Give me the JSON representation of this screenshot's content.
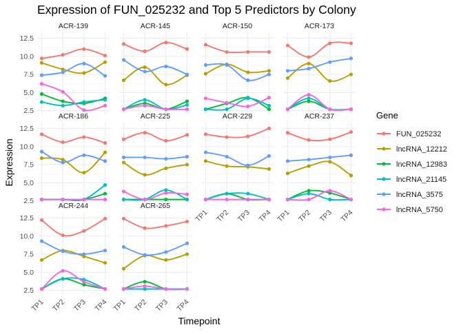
{
  "chart_data": {
    "type": "line",
    "title": "Expression of FUN_025232 and Top 5 Predictors by Colony",
    "xlabel": "Timepoint",
    "ylabel": "Expression",
    "x": [
      "TP1",
      "TP2",
      "TP3",
      "TP4"
    ],
    "y_ticks": [
      2.5,
      5.0,
      7.5,
      10.0,
      12.5
    ],
    "y_tick_labels": [
      "2.5",
      "5.0",
      "7.5",
      "10.0",
      "12.5"
    ],
    "ylim": [
      2.0,
      13.3
    ],
    "grid": true,
    "facet_layout": {
      "rows": 3,
      "cols": 4
    },
    "legend": {
      "title": "Gene",
      "position": "right"
    },
    "series_meta": [
      {
        "name": "FUN_025232",
        "color": "#F8766D"
      },
      {
        "name": "lncRNA_12212",
        "color": "#B79F00"
      },
      {
        "name": "lncRNA_12983",
        "color": "#00BA38"
      },
      {
        "name": "lncRNA_21145",
        "color": "#00BFC4"
      },
      {
        "name": "lncRNA_3575",
        "color": "#619CFF"
      },
      {
        "name": "lncRNA_5750",
        "color": "#F564E3"
      }
    ],
    "panels": [
      {
        "label": "ACR-139",
        "series": [
          {
            "name": "FUN_025232",
            "values": [
              9.7,
              10.2,
              11.0,
              10.1
            ]
          },
          {
            "name": "lncRNA_12212",
            "values": [
              9.1,
              8.2,
              7.7,
              9.2
            ]
          },
          {
            "name": "lncRNA_12983",
            "values": [
              4.8,
              3.8,
              3.5,
              4.2
            ]
          },
          {
            "name": "lncRNA_21145",
            "values": [
              3.7,
              3.2,
              3.7,
              4.0
            ]
          },
          {
            "name": "lncRNA_3575",
            "values": [
              7.4,
              7.8,
              9.0,
              7.3
            ]
          },
          {
            "name": "lncRNA_5750",
            "values": [
              6.2,
              5.1,
              2.6,
              3.2
            ]
          }
        ]
      },
      {
        "label": "ACR-145",
        "series": [
          {
            "name": "FUN_025232",
            "values": [
              11.7,
              10.7,
              11.9,
              11.0
            ]
          },
          {
            "name": "lncRNA_12212",
            "values": [
              6.7,
              8.5,
              6.1,
              7.4
            ]
          },
          {
            "name": "lncRNA_12983",
            "values": [
              2.7,
              3.5,
              2.7,
              3.8
            ]
          },
          {
            "name": "lncRNA_21145",
            "values": [
              2.7,
              4.0,
              2.7,
              3.3
            ]
          },
          {
            "name": "lncRNA_3575",
            "values": [
              9.5,
              7.9,
              8.6,
              7.5
            ]
          },
          {
            "name": "lncRNA_5750",
            "values": [
              2.7,
              3.2,
              2.7,
              2.7
            ]
          }
        ]
      },
      {
        "label": "ACR-150",
        "series": [
          {
            "name": "FUN_025232",
            "values": [
              11.6,
              10.6,
              10.6,
              10.6
            ]
          },
          {
            "name": "lncRNA_12212",
            "values": [
              7.6,
              8.9,
              7.8,
              8.0
            ]
          },
          {
            "name": "lncRNA_12983",
            "values": [
              2.7,
              3.5,
              4.3,
              2.7
            ]
          },
          {
            "name": "lncRNA_21145",
            "values": [
              2.7,
              2.7,
              4.2,
              3.2
            ]
          },
          {
            "name": "lncRNA_3575",
            "values": [
              8.8,
              8.8,
              6.7,
              7.5
            ]
          },
          {
            "name": "lncRNA_5750",
            "values": [
              4.2,
              3.6,
              3.1,
              4.3
            ]
          }
        ]
      },
      {
        "label": "ACR-173",
        "series": [
          {
            "name": "FUN_025232",
            "values": [
              11.5,
              9.9,
              11.8,
              11.8
            ]
          },
          {
            "name": "lncRNA_12212",
            "values": [
              7.0,
              9.0,
              6.6,
              7.5
            ]
          },
          {
            "name": "lncRNA_12983",
            "values": [
              2.7,
              3.8,
              2.7,
              2.7
            ]
          },
          {
            "name": "lncRNA_21145",
            "values": [
              2.7,
              4.2,
              2.7,
              2.7
            ]
          },
          {
            "name": "lncRNA_3575",
            "values": [
              8.0,
              8.3,
              9.2,
              9.7
            ]
          },
          {
            "name": "lncRNA_5750",
            "values": [
              2.7,
              4.7,
              2.7,
              2.7
            ]
          }
        ]
      },
      {
        "label": "ACR-186",
        "series": [
          {
            "name": "FUN_025232",
            "values": [
              11.7,
              10.6,
              11.3,
              10.5
            ]
          },
          {
            "name": "lncRNA_12212",
            "values": [
              8.4,
              8.2,
              6.4,
              9.2
            ]
          },
          {
            "name": "lncRNA_12983",
            "values": [
              2.7,
              2.7,
              2.7,
              3.5
            ]
          },
          {
            "name": "lncRNA_21145",
            "values": [
              2.7,
              2.7,
              2.7,
              4.7
            ]
          },
          {
            "name": "lncRNA_3575",
            "values": [
              9.3,
              7.8,
              8.8,
              8.0
            ]
          },
          {
            "name": "lncRNA_5750",
            "values": [
              2.7,
              2.7,
              2.7,
              2.7
            ]
          }
        ]
      },
      {
        "label": "ACR-225",
        "series": [
          {
            "name": "FUN_025232",
            "values": [
              11.0,
              11.9,
              10.8,
              11.6
            ]
          },
          {
            "name": "lncRNA_12212",
            "values": [
              7.8,
              6.1,
              7.0,
              7.5
            ]
          },
          {
            "name": "lncRNA_12983",
            "values": [
              2.7,
              2.7,
              2.7,
              2.7
            ]
          },
          {
            "name": "lncRNA_21145",
            "values": [
              2.7,
              2.7,
              4.0,
              2.7
            ]
          },
          {
            "name": "lncRNA_3575",
            "values": [
              8.5,
              8.5,
              8.3,
              8.6
            ]
          },
          {
            "name": "lncRNA_5750",
            "values": [
              3.8,
              2.7,
              3.6,
              3.4
            ]
          }
        ]
      },
      {
        "label": "ACR-229",
        "series": [
          {
            "name": "FUN_025232",
            "values": [
              11.7,
              11.3,
              11.4,
              12.5
            ]
          },
          {
            "name": "lncRNA_12212",
            "values": [
              8.0,
              7.3,
              7.2,
              6.9
            ]
          },
          {
            "name": "lncRNA_12983",
            "values": [
              2.7,
              3.5,
              2.7,
              2.7
            ]
          },
          {
            "name": "lncRNA_21145",
            "values": [
              2.7,
              3.5,
              3.5,
              2.7
            ]
          },
          {
            "name": "lncRNA_3575",
            "values": [
              9.2,
              8.6,
              7.4,
              8.7
            ]
          },
          {
            "name": "lncRNA_5750",
            "values": [
              2.7,
              2.7,
              2.7,
              2.7
            ]
          }
        ]
      },
      {
        "label": "ACR-237",
        "series": [
          {
            "name": "FUN_025232",
            "values": [
              11.9,
              10.9,
              11.0,
              12.0
            ]
          },
          {
            "name": "lncRNA_12212",
            "values": [
              6.3,
              7.3,
              7.9,
              6.0
            ]
          },
          {
            "name": "lncRNA_12983",
            "values": [
              2.7,
              3.9,
              3.6,
              2.7
            ]
          },
          {
            "name": "lncRNA_21145",
            "values": [
              2.7,
              3.5,
              2.7,
              2.7
            ]
          },
          {
            "name": "lncRNA_3575",
            "values": [
              8.0,
              8.2,
              8.5,
              8.8
            ]
          },
          {
            "name": "lncRNA_5750",
            "values": [
              2.7,
              2.7,
              3.9,
              2.7
            ]
          }
        ]
      },
      {
        "label": "ACR-244",
        "series": [
          {
            "name": "FUN_025232",
            "values": [
              12.2,
              10.1,
              10.7,
              12.4
            ]
          },
          {
            "name": "lncRNA_12212",
            "values": [
              6.7,
              8.0,
              7.2,
              6.3
            ]
          },
          {
            "name": "lncRNA_12983",
            "values": [
              2.7,
              4.1,
              3.3,
              2.7
            ]
          },
          {
            "name": "lncRNA_21145",
            "values": [
              2.7,
              4.1,
              4.0,
              2.7
            ]
          },
          {
            "name": "lncRNA_3575",
            "values": [
              9.3,
              7.9,
              7.5,
              8.0
            ]
          },
          {
            "name": "lncRNA_5750",
            "values": [
              2.7,
              5.2,
              3.7,
              2.7
            ]
          }
        ]
      },
      {
        "label": "ACR-265",
        "series": [
          {
            "name": "FUN_025232",
            "values": [
              12.4,
              11.1,
              11.4,
              12.0
            ]
          },
          {
            "name": "lncRNA_12212",
            "values": [
              5.5,
              7.3,
              6.7,
              7.5
            ]
          },
          {
            "name": "lncRNA_12983",
            "values": [
              2.7,
              3.7,
              2.7,
              2.7
            ]
          },
          {
            "name": "lncRNA_21145",
            "values": [
              2.7,
              2.7,
              2.7,
              2.7
            ]
          },
          {
            "name": "lncRNA_3575",
            "values": [
              8.5,
              7.4,
              7.8,
              9.0
            ]
          },
          {
            "name": "lncRNA_5750",
            "values": [
              2.7,
              3.1,
              2.7,
              2.7
            ]
          }
        ]
      }
    ]
  }
}
